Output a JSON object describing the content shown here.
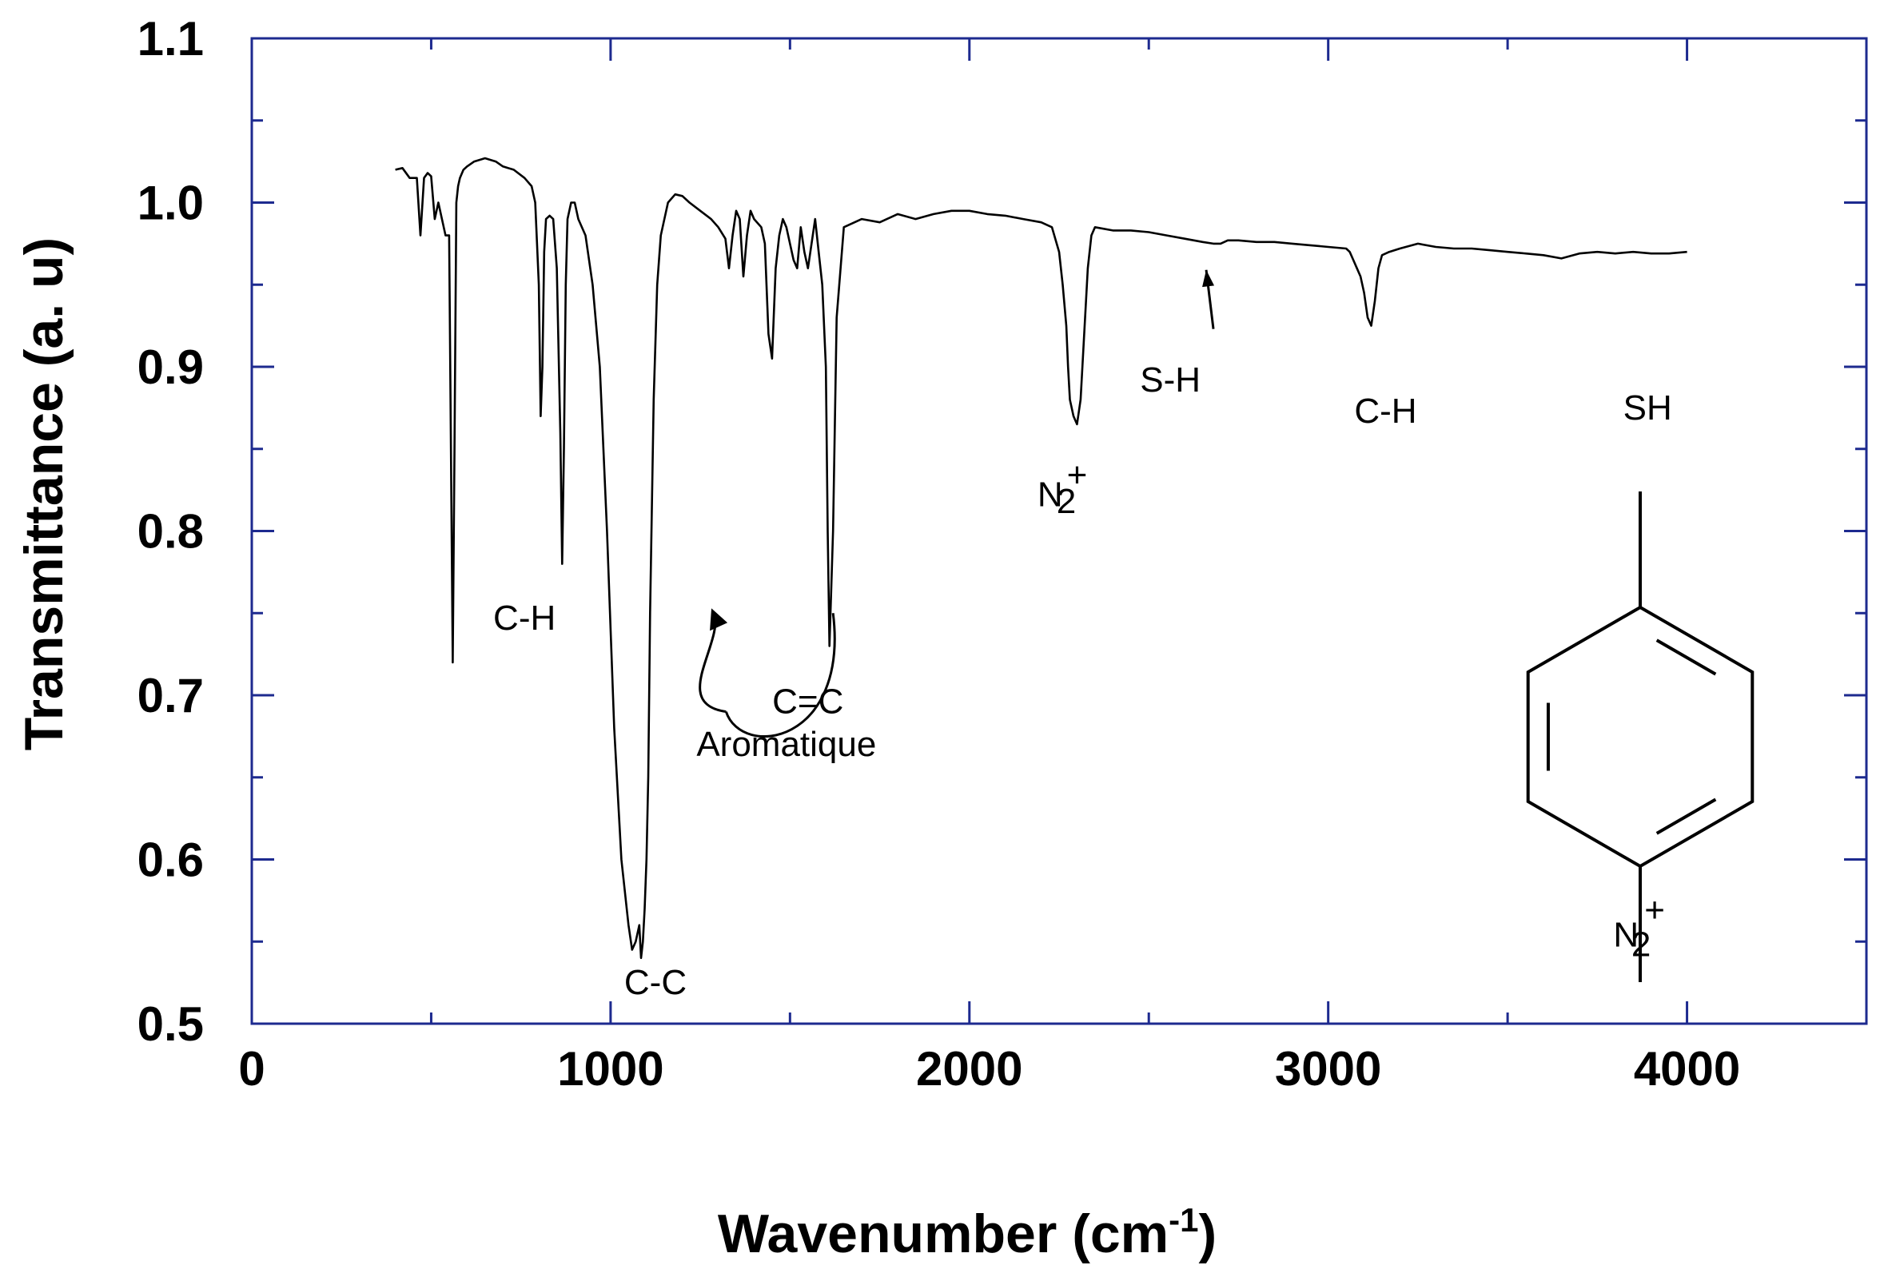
{
  "chart_data": {
    "type": "line",
    "xlabel": "Wavenumber (cm",
    "xlabel_sup": "-1",
    "xlabel_close": ")",
    "ylabel": "Transmittance (a. u)",
    "xlim": [
      0,
      4500
    ],
    "ylim": [
      0.5,
      1.1
    ],
    "x_ticks": [
      0,
      1000,
      2000,
      3000,
      4000
    ],
    "x_tick_labels": [
      "0",
      "1000",
      "2000",
      "3000",
      "4000"
    ],
    "y_ticks": [
      0.5,
      0.6,
      0.7,
      0.8,
      0.9,
      1.0,
      1.1
    ],
    "y_tick_labels": [
      "0.5",
      "0.6",
      "0.7",
      "0.8",
      "0.9",
      "1.0",
      "1.1"
    ],
    "grid": false,
    "colors": {
      "line": "#000000",
      "axis_frame": "#1d2a8f",
      "text": "#000000"
    },
    "series": [
      {
        "x": [
          400,
          420,
          440,
          460,
          470,
          480,
          490,
          500,
          510,
          520,
          530,
          540,
          550,
          560,
          565,
          570,
          575,
          580,
          590,
          600,
          620,
          650,
          680,
          700,
          730,
          760,
          780,
          790,
          800,
          805,
          810,
          815,
          820,
          830,
          840,
          850,
          860,
          865,
          870,
          875,
          880,
          890,
          900,
          910,
          930,
          950,
          970,
          990,
          1010,
          1030,
          1050,
          1060,
          1070,
          1080,
          1085,
          1090,
          1095,
          1100,
          1105,
          1110,
          1120,
          1130,
          1140,
          1160,
          1180,
          1200,
          1220,
          1250,
          1280,
          1300,
          1320,
          1330,
          1340,
          1350,
          1360,
          1370,
          1380,
          1390,
          1400,
          1420,
          1430,
          1440,
          1450,
          1460,
          1470,
          1480,
          1490,
          1500,
          1510,
          1520,
          1530,
          1540,
          1550,
          1560,
          1570,
          1580,
          1590,
          1600,
          1605,
          1610,
          1620,
          1630,
          1650,
          1700,
          1750,
          1800,
          1850,
          1900,
          1950,
          2000,
          2050,
          2100,
          2150,
          2200,
          2230,
          2250,
          2260,
          2270,
          2275,
          2280,
          2290,
          2300,
          2310,
          2320,
          2330,
          2340,
          2350,
          2400,
          2450,
          2500,
          2550,
          2600,
          2650,
          2680,
          2700,
          2720,
          2750,
          2800,
          2850,
          2900,
          2950,
          3000,
          3050,
          3060,
          3070,
          3080,
          3090,
          3100,
          3110,
          3120,
          3130,
          3140,
          3150,
          3170,
          3200,
          3250,
          3300,
          3350,
          3400,
          3450,
          3500,
          3550,
          3600,
          3650,
          3700,
          3750,
          3800,
          3850,
          3900,
          3950,
          4000
        ],
        "y": [
          1.02,
          1.021,
          1.015,
          1.015,
          0.98,
          1.015,
          1.018,
          1.016,
          0.99,
          1.0,
          0.99,
          0.98,
          0.98,
          0.72,
          0.85,
          1.0,
          1.01,
          1.015,
          1.02,
          1.022,
          1.025,
          1.027,
          1.025,
          1.022,
          1.02,
          1.015,
          1.01,
          1.0,
          0.95,
          0.87,
          0.9,
          0.97,
          0.99,
          0.992,
          0.99,
          0.96,
          0.86,
          0.78,
          0.85,
          0.95,
          0.99,
          1.0,
          1.0,
          0.99,
          0.98,
          0.95,
          0.9,
          0.8,
          0.68,
          0.6,
          0.56,
          0.545,
          0.55,
          0.56,
          0.54,
          0.55,
          0.57,
          0.6,
          0.65,
          0.75,
          0.88,
          0.95,
          0.98,
          1.0,
          1.005,
          1.004,
          1.0,
          0.995,
          0.99,
          0.985,
          0.978,
          0.96,
          0.98,
          0.995,
          0.99,
          0.955,
          0.98,
          0.995,
          0.99,
          0.985,
          0.975,
          0.92,
          0.905,
          0.96,
          0.98,
          0.99,
          0.985,
          0.975,
          0.965,
          0.96,
          0.985,
          0.97,
          0.96,
          0.975,
          0.99,
          0.97,
          0.95,
          0.9,
          0.8,
          0.73,
          0.8,
          0.93,
          0.985,
          0.99,
          0.988,
          0.993,
          0.99,
          0.993,
          0.995,
          0.995,
          0.993,
          0.992,
          0.99,
          0.988,
          0.985,
          0.97,
          0.95,
          0.925,
          0.9,
          0.88,
          0.87,
          0.865,
          0.88,
          0.92,
          0.96,
          0.98,
          0.985,
          0.983,
          0.983,
          0.982,
          0.98,
          0.978,
          0.976,
          0.975,
          0.975,
          0.977,
          0.977,
          0.976,
          0.976,
          0.975,
          0.974,
          0.973,
          0.972,
          0.97,
          0.965,
          0.96,
          0.955,
          0.945,
          0.93,
          0.925,
          0.94,
          0.96,
          0.968,
          0.97,
          0.972,
          0.975,
          0.973,
          0.972,
          0.972,
          0.971,
          0.97,
          0.969,
          0.968,
          0.966,
          0.969,
          0.97,
          0.969,
          0.97,
          0.969,
          0.969,
          0.97
        ]
      }
    ],
    "annotations": [
      {
        "text": "C-H",
        "x": 760,
        "y": 0.74
      },
      {
        "text": "C-C",
        "x": 1125,
        "y": 0.518
      },
      {
        "text": "C=C",
        "x": 1550,
        "y": 0.689
      },
      {
        "text": "Aromatique",
        "x": 1490,
        "y": 0.663
      },
      {
        "text": "N",
        "x": 2225,
        "y": 0.815
      },
      {
        "text": "2",
        "x": 2270,
        "y": 0.811,
        "style": "sub"
      },
      {
        "text": "+",
        "x": 2300,
        "y": 0.827,
        "style": "sup"
      },
      {
        "text": "S-H",
        "x": 2560,
        "y": 0.885
      },
      {
        "text": "C-H",
        "x": 3160,
        "y": 0.866
      },
      {
        "text": "SH",
        "x": 3890,
        "y": 0.868
      },
      {
        "text": "N",
        "x": 3830,
        "y": 0.547
      },
      {
        "text": "2",
        "x": 3872,
        "y": 0.541,
        "style": "sub"
      },
      {
        "text": "+",
        "x": 3910,
        "y": 0.562,
        "style": "sup"
      }
    ],
    "arrows": [
      {
        "from": [
          2680,
          0.923
        ],
        "to": [
          2660,
          0.959
        ]
      }
    ],
    "curved_arrow": {
      "from": [
        1620,
        0.75
      ],
      "via": [
        1500,
        0.69
      ],
      "to": [
        1290,
        0.75
      ]
    },
    "structure": {
      "description_labels": [
        "SH",
        "N2+"
      ],
      "ring": "para-disubstituted benzene"
    }
  }
}
